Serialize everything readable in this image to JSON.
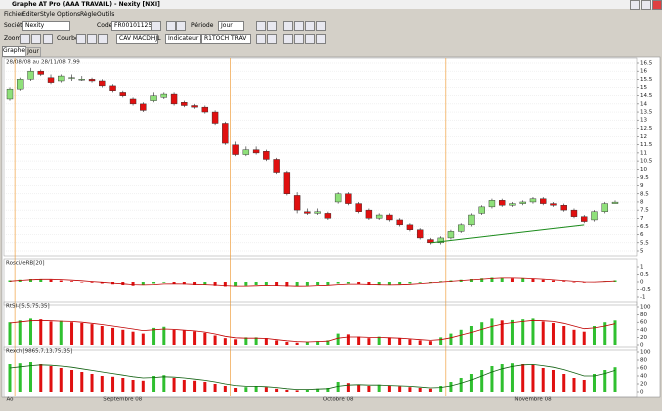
{
  "window": {
    "title": "Graphe AT Pro (AAA TRAVAIL) - Nexity [NXI]"
  },
  "menu": [
    "Fichier",
    "Editer",
    "Style",
    "Options",
    "Règle",
    "Outils"
  ],
  "toolbar": {
    "company_label": "Société",
    "company": "Nexity",
    "code_label": "Code",
    "code": "FR0010112524",
    "period_label": "Période",
    "period": "Jour",
    "zoom_label": "Zoom",
    "curve_label": "Courbe",
    "curve": "CAV MACDHJL",
    "indicator": "Indicateur 3",
    "template": "R1TOCH TRAV"
  },
  "tabs": [
    "Graphe",
    "Jour"
  ],
  "chart_data": [
    {
      "type": "candlestick",
      "title": "28/08/08 au 28/11/08 7.99",
      "open": [
        14.3,
        14.9,
        15.5,
        16.0,
        15.6,
        15.4,
        15.6,
        15.5,
        15.5,
        15.4,
        15.1,
        14.7,
        14.3,
        14.0,
        14.2,
        14.4,
        14.6,
        14.1,
        13.9,
        13.8,
        13.5,
        12.8,
        11.5,
        10.9,
        11.2,
        11.1,
        10.6,
        9.8,
        8.4,
        7.4,
        7.3,
        7.3,
        8.0,
        8.5,
        7.9,
        7.5,
        7.0,
        7.2,
        6.9,
        6.6,
        6.3,
        5.7,
        5.5,
        5.8,
        6.2,
        6.6,
        7.3,
        7.7,
        8.1,
        7.8,
        7.9,
        8.0,
        8.2,
        7.9,
        7.8,
        7.5,
        7.1,
        6.9,
        7.4,
        7.9
      ],
      "high": [
        15.0,
        15.6,
        16.2,
        16.1,
        15.8,
        15.8,
        15.8,
        15.7,
        15.6,
        15.5,
        15.2,
        14.8,
        14.4,
        14.1,
        14.7,
        14.7,
        14.7,
        14.2,
        14.0,
        13.9,
        13.6,
        12.9,
        11.7,
        11.4,
        11.4,
        11.2,
        10.7,
        9.9,
        8.6,
        7.6,
        7.6,
        7.4,
        8.6,
        8.6,
        8.0,
        7.6,
        7.3,
        7.3,
        7.0,
        6.7,
        6.4,
        5.8,
        5.9,
        6.3,
        6.7,
        7.3,
        7.8,
        8.2,
        8.2,
        8.0,
        8.1,
        8.3,
        8.3,
        8.0,
        7.9,
        7.6,
        7.2,
        7.5,
        8.0,
        8.1
      ],
      "low": [
        14.2,
        14.8,
        15.4,
        15.7,
        15.2,
        15.3,
        15.4,
        15.4,
        15.3,
        15.0,
        14.7,
        14.4,
        13.9,
        13.5,
        14.1,
        14.3,
        13.9,
        13.8,
        13.7,
        13.4,
        12.7,
        11.5,
        10.8,
        10.8,
        10.9,
        10.5,
        9.7,
        8.4,
        7.3,
        7.2,
        7.2,
        6.9,
        7.9,
        7.8,
        7.3,
        6.9,
        6.9,
        6.8,
        6.5,
        6.2,
        5.7,
        5.4,
        5.4,
        5.7,
        6.1,
        6.5,
        7.2,
        7.6,
        7.7,
        7.7,
        7.8,
        7.9,
        7.8,
        7.7,
        7.4,
        7.0,
        6.7,
        6.8,
        7.3,
        7.9
      ],
      "close": [
        14.9,
        15.5,
        16.0,
        15.8,
        15.3,
        15.7,
        15.6,
        15.5,
        15.4,
        15.1,
        14.8,
        14.5,
        14.0,
        13.6,
        14.5,
        14.6,
        14.0,
        13.9,
        13.8,
        13.5,
        12.8,
        11.6,
        10.9,
        11.2,
        11.0,
        10.6,
        9.8,
        8.5,
        7.5,
        7.3,
        7.4,
        7.0,
        8.5,
        7.9,
        7.4,
        7.0,
        7.2,
        6.9,
        6.6,
        6.3,
        5.8,
        5.5,
        5.8,
        6.2,
        6.6,
        7.2,
        7.7,
        8.1,
        7.8,
        7.9,
        8.0,
        8.2,
        7.9,
        7.8,
        7.5,
        7.1,
        6.8,
        7.4,
        7.9,
        7.99
      ],
      "up_color": "#8fe07a",
      "down_color": "#e01010",
      "grid": true,
      "ylim": [
        5,
        16.5
      ],
      "yticks": [
        16.5,
        16,
        15.5,
        15,
        14.5,
        14,
        13.5,
        13,
        12.5,
        12,
        11.5,
        11,
        10.5,
        10,
        9.5,
        9,
        8.5,
        8,
        7.5,
        7,
        6.5,
        6,
        5.5,
        5
      ],
      "month_labels": [
        "Ao",
        "Septembre 08",
        "Octobre 08",
        "Novembre 08"
      ],
      "month_starts": [
        0,
        1,
        22,
        43
      ],
      "month_line_color": "#f0a040",
      "trendline": {
        "color": "#1a8a1a",
        "points": [
          [
            41,
            5.5
          ],
          [
            56,
            6.6
          ]
        ]
      }
    },
    {
      "type": "bar",
      "title": "Rosci/eRB[20]",
      "values": [
        0.1,
        0.15,
        0.2,
        0.2,
        0.15,
        0.1,
        0.05,
        0,
        -0.05,
        -0.1,
        -0.15,
        -0.2,
        -0.25,
        -0.2,
        -0.1,
        -0.05,
        -0.1,
        -0.15,
        -0.2,
        -0.2,
        -0.25,
        -0.3,
        -0.3,
        -0.25,
        -0.2,
        -0.2,
        -0.25,
        -0.3,
        -0.3,
        -0.25,
        -0.2,
        -0.2,
        -0.1,
        -0.1,
        -0.15,
        -0.2,
        -0.2,
        -0.2,
        -0.15,
        -0.1,
        -0.05,
        0,
        0.05,
        0.1,
        0.15,
        0.2,
        0.25,
        0.3,
        0.3,
        0.25,
        0.25,
        0.2,
        0.15,
        0.1,
        0.05,
        0,
        -0.05,
        0,
        0.05,
        0.1
      ],
      "line": [
        0.05,
        0.1,
        0.15,
        0.18,
        0.18,
        0.16,
        0.12,
        0.08,
        0.03,
        -0.02,
        -0.07,
        -0.12,
        -0.17,
        -0.19,
        -0.17,
        -0.13,
        -0.12,
        -0.13,
        -0.15,
        -0.17,
        -0.2,
        -0.24,
        -0.27,
        -0.27,
        -0.25,
        -0.23,
        -0.24,
        -0.26,
        -0.28,
        -0.27,
        -0.24,
        -0.22,
        -0.17,
        -0.14,
        -0.14,
        -0.16,
        -0.18,
        -0.19,
        -0.18,
        -0.15,
        -0.11,
        -0.06,
        -0.01,
        0.04,
        0.09,
        0.14,
        0.19,
        0.24,
        0.27,
        0.27,
        0.26,
        0.23,
        0.19,
        0.14,
        0.09,
        0.04,
        0,
        -0.01,
        0.02,
        0.06
      ],
      "up_color": "#30c030",
      "down_color": "#e01010",
      "line_color": "#c00000",
      "ylim": [
        -1.2,
        1.2
      ],
      "yticks": [
        1,
        0.5,
        0,
        -0.5,
        -1
      ]
    },
    {
      "type": "bar",
      "title": "RtSI-[5,5,75,35]",
      "values": [
        60,
        65,
        70,
        68,
        62,
        64,
        60,
        58,
        55,
        50,
        45,
        40,
        35,
        30,
        45,
        48,
        40,
        38,
        36,
        32,
        25,
        18,
        15,
        20,
        20,
        18,
        12,
        8,
        6,
        8,
        10,
        12,
        30,
        28,
        22,
        18,
        22,
        20,
        18,
        15,
        12,
        10,
        20,
        30,
        40,
        50,
        60,
        70,
        65,
        66,
        68,
        70,
        62,
        58,
        50,
        40,
        35,
        50,
        60,
        65
      ],
      "line": [
        58,
        61,
        64,
        65,
        64,
        63,
        62,
        60,
        57,
        54,
        50,
        46,
        42,
        38,
        40,
        42,
        41,
        39,
        37,
        34,
        29,
        23,
        19,
        18,
        18,
        17,
        14,
        11,
        9,
        8,
        9,
        10,
        18,
        21,
        21,
        20,
        20,
        19,
        18,
        16,
        14,
        12,
        14,
        19,
        26,
        33,
        41,
        49,
        55,
        59,
        62,
        65,
        64,
        62,
        57,
        50,
        43,
        45,
        50,
        56
      ],
      "up_color": "#30c030",
      "down_color": "#e01010",
      "line_color": "#c00000",
      "ylim": [
        0,
        100
      ],
      "yticks": [
        100,
        80,
        60,
        40,
        20,
        0
      ]
    },
    {
      "type": "bar",
      "title": "Rexch[9865,7,13,75,35]",
      "values": [
        70,
        72,
        75,
        70,
        65,
        60,
        55,
        50,
        45,
        40,
        38,
        35,
        30,
        28,
        40,
        42,
        35,
        30,
        28,
        25,
        20,
        15,
        10,
        12,
        15,
        12,
        8,
        5,
        4,
        5,
        8,
        10,
        25,
        22,
        18,
        15,
        18,
        16,
        14,
        12,
        10,
        8,
        15,
        25,
        35,
        45,
        55,
        65,
        70,
        72,
        70,
        68,
        60,
        55,
        45,
        35,
        30,
        45,
        55,
        62
      ],
      "line": [
        60,
        63,
        66,
        68,
        67,
        65,
        62,
        58,
        54,
        50,
        46,
        42,
        38,
        35,
        36,
        38,
        37,
        35,
        32,
        29,
        25,
        20,
        16,
        14,
        14,
        13,
        11,
        8,
        6,
        6,
        7,
        8,
        14,
        17,
        18,
        17,
        17,
        16,
        15,
        14,
        12,
        10,
        11,
        15,
        22,
        30,
        40,
        50,
        58,
        64,
        68,
        69,
        66,
        62,
        56,
        48,
        40,
        40,
        46,
        54
      ],
      "up_color": "#30c030",
      "down_color": "#e01010",
      "line_color": "#106010",
      "ylim": [
        0,
        100
      ],
      "yticks": [
        100,
        80,
        60,
        40,
        20,
        0
      ]
    }
  ]
}
